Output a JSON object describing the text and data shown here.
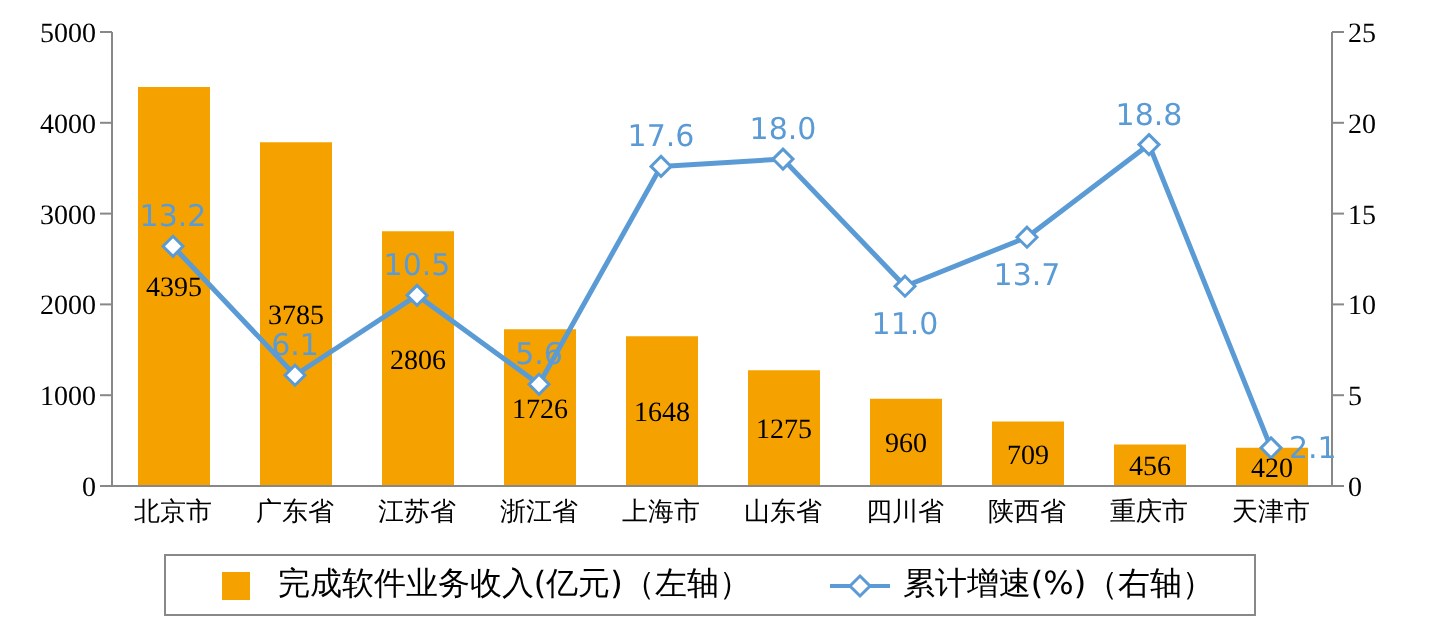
{
  "chart_data": {
    "type": "bar",
    "categories": [
      "北京市",
      "广东省",
      "江苏省",
      "浙江省",
      "上海市",
      "山东省",
      "四川省",
      "陕西省",
      "重庆市",
      "天津市"
    ],
    "series": [
      {
        "name": "完成软件业务收入(亿元)（左轴）",
        "color": "#f5a200",
        "values": [
          4395,
          3785,
          2806,
          1726,
          1648,
          1275,
          960,
          709,
          456,
          420
        ]
      },
      {
        "name": "累计增速(%)（右轴）",
        "type": "line",
        "axis": "y2",
        "color": "#5b9bd5",
        "values": [
          13.2,
          6.1,
          10.5,
          5.6,
          17.6,
          18.0,
          11.0,
          13.7,
          18.8,
          2.1
        ],
        "value_labels": [
          "13.2",
          "6.1",
          "10.5",
          "5.6",
          "17.6",
          "18.0",
          "11.0",
          "13.7",
          "18.8",
          "2.1"
        ]
      }
    ],
    "ylim": [
      0,
      5000
    ],
    "yticks": [
      0,
      1000,
      2000,
      3000,
      4000,
      5000
    ],
    "y2lim": [
      0,
      25
    ],
    "y2ticks": [
      0,
      5,
      10,
      15,
      20,
      25
    ],
    "data_labels": true,
    "legend": "bottom",
    "marker": "diamond",
    "line_style": "solid",
    "grid": false
  }
}
